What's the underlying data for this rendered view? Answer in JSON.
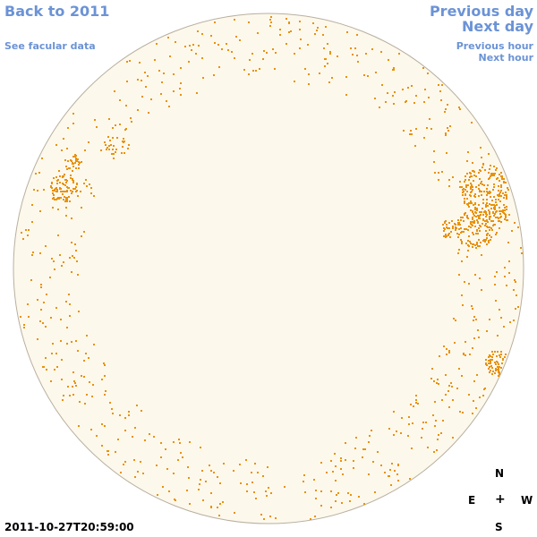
{
  "nav": {
    "back_label": "Back to 2011",
    "facular_label": "See facular data",
    "prev_day_label": "Previous day",
    "next_day_label": "Next day",
    "prev_hour_label": "Previous hour",
    "next_hour_label": "Next hour"
  },
  "compass": {
    "north": "N",
    "south": "S",
    "east": "E",
    "west": "W",
    "center": "+"
  },
  "timestamp": "2011-10-27T20:59:00",
  "colors": {
    "link": "#6b93d6",
    "disk_fill": "#fdf8ec",
    "disk_outline": "#b8b0a0",
    "spot": "#e8920a"
  }
}
